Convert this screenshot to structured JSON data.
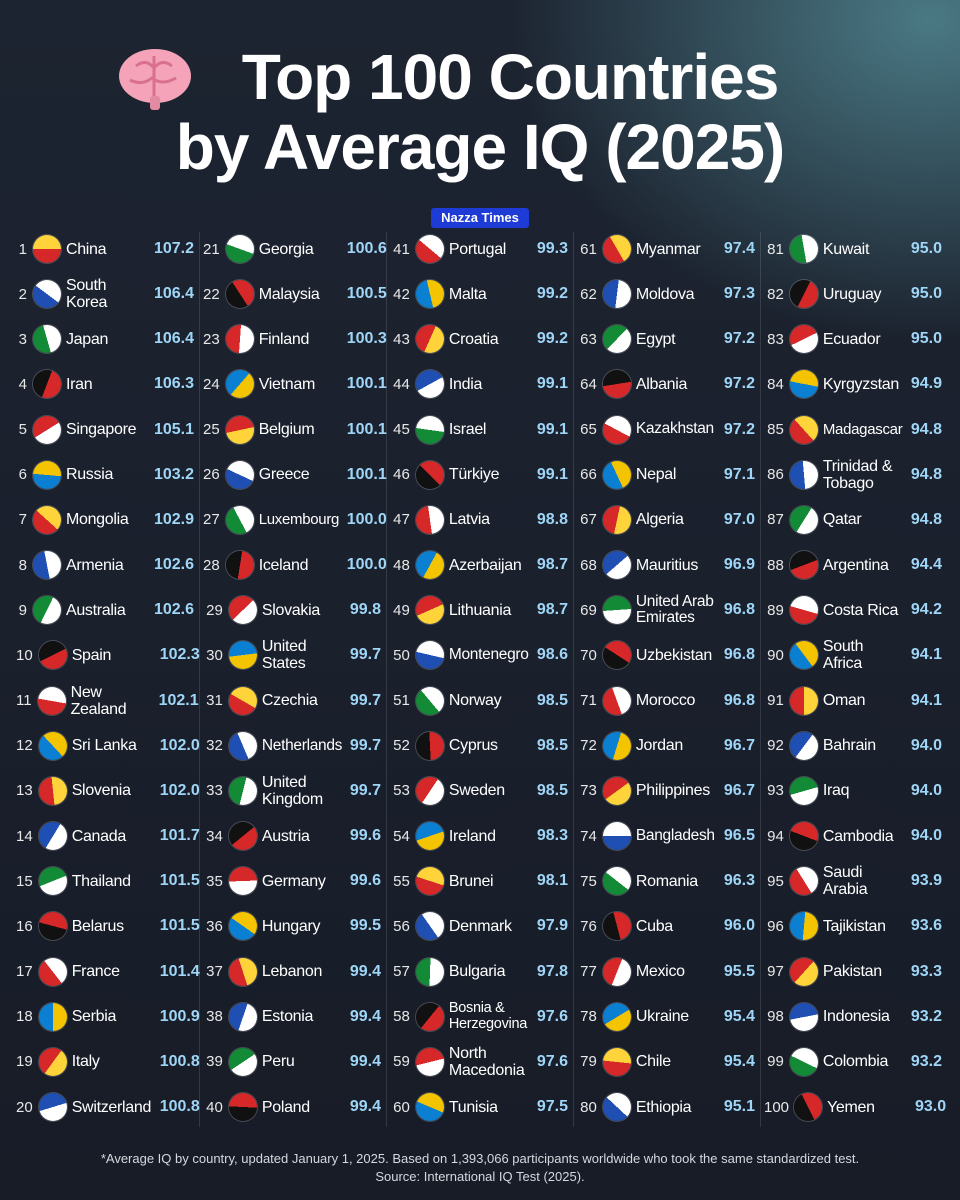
{
  "header": {
    "title_lines": [
      "Top 100 Countries",
      "by Average IQ (2025)"
    ],
    "badge": "Nazza Times"
  },
  "table": {
    "rows": [
      [
        1,
        "China",
        "107.2"
      ],
      [
        2,
        "South Korea",
        "106.4"
      ],
      [
        3,
        "Japan",
        "106.4"
      ],
      [
        4,
        "Iran",
        "106.3"
      ],
      [
        5,
        "Singapore",
        "105.1"
      ],
      [
        6,
        "Russia",
        "103.2"
      ],
      [
        7,
        "Mongolia",
        "102.9"
      ],
      [
        8,
        "Armenia",
        "102.6"
      ],
      [
        9,
        "Australia",
        "102.6"
      ],
      [
        10,
        "Spain",
        "102.3"
      ],
      [
        11,
        "New Zealand",
        "102.1"
      ],
      [
        12,
        "Sri Lanka",
        "102.0"
      ],
      [
        13,
        "Slovenia",
        "102.0"
      ],
      [
        14,
        "Canada",
        "101.7"
      ],
      [
        15,
        "Thailand",
        "101.5"
      ],
      [
        16,
        "Belarus",
        "101.5"
      ],
      [
        17,
        "France",
        "101.4"
      ],
      [
        18,
        "Serbia",
        "100.9"
      ],
      [
        19,
        "Italy",
        "100.8"
      ],
      [
        20,
        "Switzerland",
        "100.8"
      ],
      [
        21,
        "Georgia",
        "100.6"
      ],
      [
        22,
        "Malaysia",
        "100.5"
      ],
      [
        23,
        "Finland",
        "100.3"
      ],
      [
        24,
        "Vietnam",
        "100.1"
      ],
      [
        25,
        "Belgium",
        "100.1"
      ],
      [
        26,
        "Greece",
        "100.1"
      ],
      [
        27,
        "Luxembourg",
        "100.0"
      ],
      [
        28,
        "Iceland",
        "100.0"
      ],
      [
        29,
        "Slovakia",
        "99.8"
      ],
      [
        30,
        "United States",
        "99.7"
      ],
      [
        31,
        "Czechia",
        "99.7"
      ],
      [
        32,
        "Netherlands",
        "99.7"
      ],
      [
        33,
        "United Kingdom",
        "99.7"
      ],
      [
        34,
        "Austria",
        "99.6"
      ],
      [
        35,
        "Germany",
        "99.6"
      ],
      [
        36,
        "Hungary",
        "99.5"
      ],
      [
        37,
        "Lebanon",
        "99.4"
      ],
      [
        38,
        "Estonia",
        "99.4"
      ],
      [
        39,
        "Peru",
        "99.4"
      ],
      [
        40,
        "Poland",
        "99.4"
      ],
      [
        41,
        "Portugal",
        "99.3"
      ],
      [
        42,
        "Malta",
        "99.2"
      ],
      [
        43,
        "Croatia",
        "99.2"
      ],
      [
        44,
        "India",
        "99.1"
      ],
      [
        45,
        "Israel",
        "99.1"
      ],
      [
        46,
        "Türkiye",
        "99.1"
      ],
      [
        47,
        "Latvia",
        "98.8"
      ],
      [
        48,
        "Azerbaijan",
        "98.7"
      ],
      [
        49,
        "Lithuania",
        "98.7"
      ],
      [
        50,
        "Montenegro",
        "98.6"
      ],
      [
        51,
        "Norway",
        "98.5"
      ],
      [
        52,
        "Cyprus",
        "98.5"
      ],
      [
        53,
        "Sweden",
        "98.5"
      ],
      [
        54,
        "Ireland",
        "98.3"
      ],
      [
        55,
        "Brunei",
        "98.1"
      ],
      [
        56,
        "Denmark",
        "97.9"
      ],
      [
        57,
        "Bulgaria",
        "97.8"
      ],
      [
        58,
        "Bosnia & Herzegovina",
        "97.6"
      ],
      [
        59,
        "North Macedonia",
        "97.6"
      ],
      [
        60,
        "Tunisia",
        "97.5"
      ],
      [
        61,
        "Myanmar",
        "97.4"
      ],
      [
        62,
        "Moldova",
        "97.3"
      ],
      [
        63,
        "Egypt",
        "97.2"
      ],
      [
        64,
        "Albania",
        "97.2"
      ],
      [
        65,
        "Kazakhstan",
        "97.2"
      ],
      [
        66,
        "Nepal",
        "97.1"
      ],
      [
        67,
        "Algeria",
        "97.0"
      ],
      [
        68,
        "Mauritius",
        "96.9"
      ],
      [
        69,
        "United Arab Emirates",
        "96.8"
      ],
      [
        70,
        "Uzbekistan",
        "96.8"
      ],
      [
        71,
        "Morocco",
        "96.8"
      ],
      [
        72,
        "Jordan",
        "96.7"
      ],
      [
        73,
        "Philippines",
        "96.7"
      ],
      [
        74,
        "Bangladesh",
        "96.5"
      ],
      [
        75,
        "Romania",
        "96.3"
      ],
      [
        76,
        "Cuba",
        "96.0"
      ],
      [
        77,
        "Mexico",
        "95.5"
      ],
      [
        78,
        "Ukraine",
        "95.4"
      ],
      [
        79,
        "Chile",
        "95.4"
      ],
      [
        80,
        "Ethiopia",
        "95.1"
      ],
      [
        81,
        "Kuwait",
        "95.0"
      ],
      [
        82,
        "Uruguay",
        "95.0"
      ],
      [
        83,
        "Ecuador",
        "95.0"
      ],
      [
        84,
        "Kyrgyzstan",
        "94.9"
      ],
      [
        85,
        "Madagascar",
        "94.8"
      ],
      [
        86,
        "Trinidad & Tobago",
        "94.8"
      ],
      [
        87,
        "Qatar",
        "94.8"
      ],
      [
        88,
        "Argentina",
        "94.4"
      ],
      [
        89,
        "Costa Rica",
        "94.2"
      ],
      [
        90,
        "South Africa",
        "94.1"
      ],
      [
        91,
        "Oman",
        "94.1"
      ],
      [
        92,
        "Bahrain",
        "94.0"
      ],
      [
        93,
        "Iraq",
        "94.0"
      ],
      [
        94,
        "Cambodia",
        "94.0"
      ],
      [
        95,
        "Saudi Arabia",
        "93.9"
      ],
      [
        96,
        "Tajikistan",
        "93.6"
      ],
      [
        97,
        "Pakistan",
        "93.3"
      ],
      [
        98,
        "Indonesia",
        "93.2"
      ],
      [
        99,
        "Colombia",
        "93.2"
      ],
      [
        100,
        "Yemen",
        "93.0"
      ]
    ]
  },
  "footer": {
    "note": "*Average IQ by country, updated January 1, 2025. Based on 1,393,066 participants worldwide who took the same standardized test.",
    "source": "Source: International IQ Test (2025)."
  }
}
